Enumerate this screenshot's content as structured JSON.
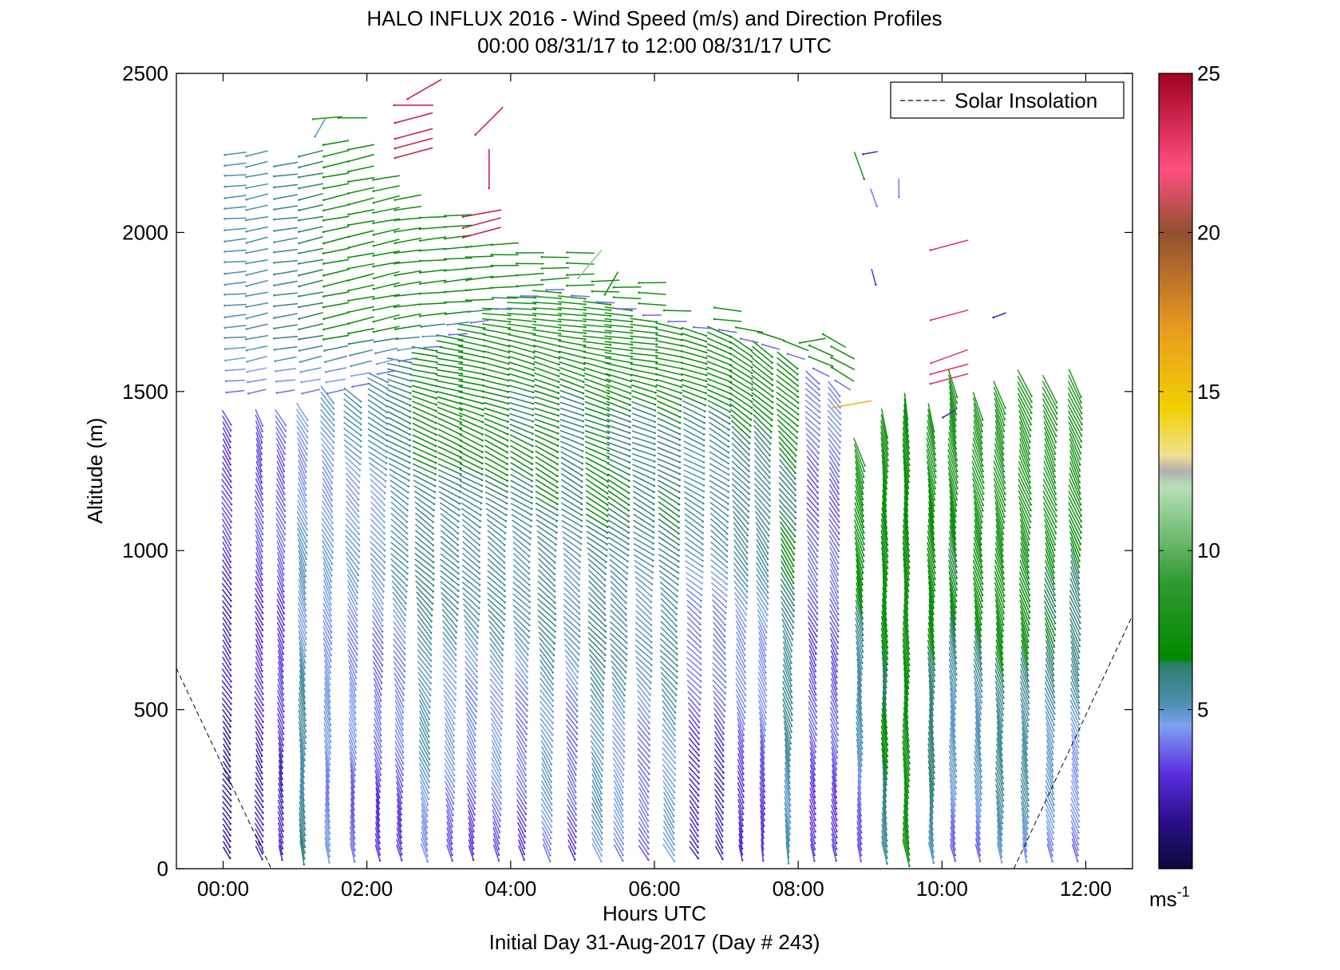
{
  "chart_data": {
    "type": "wind-barb-profile",
    "title": "HALO INFLUX 2016 - Wind Speed (m/s) and Direction Profiles",
    "subtitle": "00:00 08/31/17 to 12:00 08/31/17  UTC",
    "xlabel": "Hours UTC",
    "xlabel2": "Initial Day 31-Aug-2017 (Day # 243)",
    "ylabel": "Altitude (m)",
    "xlim_hours": [
      -0.65,
      12.65
    ],
    "ylim": [
      0,
      2500
    ],
    "x_ticks": [
      {
        "hour": 0,
        "label": "00:00"
      },
      {
        "hour": 2,
        "label": "02:00"
      },
      {
        "hour": 4,
        "label": "04:00"
      },
      {
        "hour": 6,
        "label": "06:00"
      },
      {
        "hour": 8,
        "label": "08:00"
      },
      {
        "hour": 10,
        "label": "10:00"
      },
      {
        "hour": 12,
        "label": "12:00"
      }
    ],
    "y_ticks": [
      {
        "value": 0,
        "label": "0"
      },
      {
        "value": 500,
        "label": "500"
      },
      {
        "value": 1000,
        "label": "1000"
      },
      {
        "value": 1500,
        "label": "1500"
      },
      {
        "value": 2000,
        "label": "2000"
      },
      {
        "value": 2500,
        "label": "2500"
      }
    ],
    "legend": {
      "label": "Solar Insolation",
      "placement": "top-right",
      "style": "dashed"
    },
    "solar_insolation": [
      {
        "segment": [
          [
            -0.65,
            630
          ],
          [
            0.67,
            0
          ]
        ]
      },
      {
        "segment": [
          [
            11.0,
            0
          ],
          [
            12.7,
            820
          ]
        ]
      }
    ],
    "colorbar": {
      "min": 0,
      "max": 25,
      "ticks": [
        {
          "value": 5,
          "label": "5"
        },
        {
          "value": 10,
          "label": "10"
        },
        {
          "value": 15,
          "label": "15"
        },
        {
          "value": 20,
          "label": "20"
        },
        {
          "value": 25,
          "label": "25"
        }
      ],
      "unit_label": "ms",
      "unit_exp": "-1",
      "stops": [
        {
          "v": 0,
          "color": "#0a0a3a"
        },
        {
          "v": 1.5,
          "color": "#2a0f8a"
        },
        {
          "v": 3,
          "color": "#5a2fe0"
        },
        {
          "v": 4.5,
          "color": "#7fa0f0"
        },
        {
          "v": 5.2,
          "color": "#4a90b0"
        },
        {
          "v": 6.4,
          "color": "#2e7f6e"
        },
        {
          "v": 6.6,
          "color": "#008a00"
        },
        {
          "v": 9,
          "color": "#2f9a2f"
        },
        {
          "v": 12,
          "color": "#b8e0b8"
        },
        {
          "v": 12.5,
          "color": "#b0b0b0"
        },
        {
          "v": 13,
          "color": "#f0e090"
        },
        {
          "v": 14.5,
          "color": "#f0d000"
        },
        {
          "v": 17,
          "color": "#e89a20"
        },
        {
          "v": 20,
          "color": "#905030"
        },
        {
          "v": 22,
          "color": "#ff5080"
        },
        {
          "v": 25,
          "color": "#a00020"
        }
      ]
    },
    "profiles": [
      {
        "hour": 0.05,
        "top": 1430,
        "bottom": 50,
        "speed_low": 1.6,
        "speed_high": 3.5,
        "dir_low": 145,
        "dir_high": 150
      },
      {
        "hour": 0.5,
        "top": 1430,
        "bottom": 50,
        "speed_low": 2.2,
        "speed_high": 3.7,
        "dir_low": 150,
        "dir_high": 160
      },
      {
        "hour": 0.8,
        "top": 1420,
        "bottom": 50,
        "speed_low": 2.2,
        "speed_high": 4.0,
        "dir_low": 165,
        "dir_high": 150
      },
      {
        "hour": 1.1,
        "top": 1450,
        "bottom": 50,
        "speed_low": 5.8,
        "speed_high": 4.3,
        "dir_low": 170,
        "dir_high": 150
      },
      {
        "hour": 1.45,
        "top": 1500,
        "bottom": 50,
        "speed_low": 4.4,
        "speed_high": 4.6,
        "dir_low": 170,
        "dir_high": 140
      },
      {
        "hour": 1.8,
        "top": 1500,
        "bottom": 50,
        "speed_low": 3.8,
        "speed_high": 5.0,
        "dir_low": 170,
        "dir_high": 125
      },
      {
        "hour": 2.15,
        "top": 1560,
        "bottom": 50,
        "speed_low": 3.0,
        "speed_high": 5.5,
        "dir_low": 168,
        "dir_high": 115
      },
      {
        "hour": 2.45,
        "top": 1600,
        "bottom": 50,
        "speed_low": 3.0,
        "speed_high": 6.5,
        "dir_low": 165,
        "dir_high": 105
      },
      {
        "hour": 2.8,
        "top": 1640,
        "bottom": 50,
        "speed_low": 4.4,
        "speed_high": 7.0,
        "dir_low": 162,
        "dir_high": 100
      },
      {
        "hour": 3.15,
        "top": 1680,
        "bottom": 50,
        "speed_low": 3.6,
        "speed_high": 7.2,
        "dir_low": 160,
        "dir_high": 97
      },
      {
        "hour": 3.45,
        "top": 1720,
        "bottom": 50,
        "speed_low": 3.0,
        "speed_high": 7.5,
        "dir_low": 160,
        "dir_high": 95
      },
      {
        "hour": 3.8,
        "top": 1760,
        "bottom": 50,
        "speed_low": 3.6,
        "speed_high": 7.5,
        "dir_low": 158,
        "dir_high": 95
      },
      {
        "hour": 4.15,
        "top": 1800,
        "bottom": 50,
        "speed_low": 3.0,
        "speed_high": 7.6,
        "dir_low": 155,
        "dir_high": 95
      },
      {
        "hour": 4.5,
        "top": 1820,
        "bottom": 50,
        "speed_low": 4.2,
        "speed_high": 7.6,
        "dir_low": 155,
        "dir_high": 95
      },
      {
        "hour": 4.85,
        "top": 1800,
        "bottom": 50,
        "speed_low": 3.0,
        "speed_high": 7.5,
        "dir_low": 155,
        "dir_high": 95
      },
      {
        "hour": 5.2,
        "top": 1780,
        "bottom": 50,
        "speed_low": 4.6,
        "speed_high": 7.5,
        "dir_low": 155,
        "dir_high": 95
      },
      {
        "hour": 5.5,
        "top": 1760,
        "bottom": 50,
        "speed_low": 4.0,
        "speed_high": 7.4,
        "dir_low": 155,
        "dir_high": 95
      },
      {
        "hour": 5.85,
        "top": 1740,
        "bottom": 50,
        "speed_low": 3.4,
        "speed_high": 7.2,
        "dir_low": 150,
        "dir_high": 95
      },
      {
        "hour": 6.2,
        "top": 1720,
        "bottom": 50,
        "speed_low": 4.4,
        "speed_high": 7.2,
        "dir_low": 150,
        "dir_high": 100
      },
      {
        "hour": 6.55,
        "top": 1700,
        "bottom": 50,
        "speed_low": 2.0,
        "speed_high": 7.0,
        "dir_low": 145,
        "dir_high": 105
      },
      {
        "hour": 6.9,
        "top": 1690,
        "bottom": 50,
        "speed_low": 2.0,
        "speed_high": 7.0,
        "dir_low": 150,
        "dir_high": 110
      },
      {
        "hour": 7.2,
        "top": 1660,
        "bottom": 50,
        "speed_low": 2.4,
        "speed_high": 7.4,
        "dir_low": 165,
        "dir_high": 120
      },
      {
        "hour": 7.5,
        "top": 1640,
        "bottom": 50,
        "speed_low": 2.8,
        "speed_high": 7.0,
        "dir_low": 170,
        "dir_high": 125
      },
      {
        "hour": 7.85,
        "top": 1610,
        "bottom": 50,
        "speed_low": 5.0,
        "speed_high": 7.2,
        "dir_low": 170,
        "dir_high": 125
      },
      {
        "hour": 8.2,
        "top": 1560,
        "bottom": 50,
        "speed_low": 3.2,
        "speed_high": 3.8,
        "dir_low": 165,
        "dir_high": 130
      },
      {
        "hour": 8.5,
        "top": 1520,
        "bottom": 50,
        "speed_low": 3.2,
        "speed_high": 4.0,
        "dir_low": 165,
        "dir_high": 140
      },
      {
        "hour": 8.85,
        "top": 1310,
        "bottom": 50,
        "speed_low": 3.6,
        "speed_high": 8.0,
        "dir_low": 170,
        "dir_high": 160
      },
      {
        "hour": 9.2,
        "top": 1400,
        "bottom": 50,
        "speed_low": 5.8,
        "speed_high": 8.0,
        "dir_low": 170,
        "dir_high": 170
      },
      {
        "hour": 9.5,
        "top": 1470,
        "bottom": 50,
        "speed_low": 7.8,
        "speed_high": 7.0,
        "dir_low": 170,
        "dir_high": 170
      },
      {
        "hour": 9.85,
        "top": 1420,
        "bottom": 50,
        "speed_low": 5.4,
        "speed_high": 8.0,
        "dir_low": 170,
        "dir_high": 165
      },
      {
        "hour": 10.15,
        "top": 1530,
        "bottom": 50,
        "speed_low": 3.8,
        "speed_high": 8.5,
        "dir_low": 165,
        "dir_high": 165
      },
      {
        "hour": 10.5,
        "top": 1460,
        "bottom": 50,
        "speed_low": 4.0,
        "speed_high": 8.5,
        "dir_low": 165,
        "dir_high": 160
      },
      {
        "hour": 10.8,
        "top": 1500,
        "bottom": 50,
        "speed_low": 5.0,
        "speed_high": 8.5,
        "dir_low": 165,
        "dir_high": 160
      },
      {
        "hour": 11.15,
        "top": 1540,
        "bottom": 50,
        "speed_low": 4.6,
        "speed_high": 8.5,
        "dir_low": 165,
        "dir_high": 155
      },
      {
        "hour": 11.5,
        "top": 1520,
        "bottom": 50,
        "speed_low": 4.0,
        "speed_high": 8.8,
        "dir_low": 160,
        "dir_high": 155
      },
      {
        "hour": 11.85,
        "top": 1540,
        "bottom": 50,
        "speed_low": 3.6,
        "speed_high": 8.6,
        "dir_low": 160,
        "dir_high": 155
      }
    ],
    "upper_winds": [
      {
        "hour": 0.05,
        "alt_min": 1500,
        "alt_max": 2260,
        "speed": 5.2,
        "dir": 265
      },
      {
        "hour": 0.35,
        "alt_min": 1500,
        "alt_max": 2260,
        "speed": 5.4,
        "dir": 258
      },
      {
        "hour": 0.75,
        "alt_min": 1500,
        "alt_max": 2230,
        "speed": 6.0,
        "dir": 262
      },
      {
        "hour": 1.1,
        "alt_min": 1500,
        "alt_max": 2250,
        "speed": 6.4,
        "dir": 258
      },
      {
        "hour": 1.45,
        "alt_min": 1500,
        "alt_max": 2300,
        "speed": 6.8,
        "dir": 258
      },
      {
        "hour": 1.8,
        "alt_min": 1520,
        "alt_max": 2280,
        "speed": 7.0,
        "dir": 258
      },
      {
        "hour": 2.15,
        "alt_min": 1560,
        "alt_max": 2200,
        "speed": 7.2,
        "dir": 258
      },
      {
        "hour": 2.45,
        "alt_min": 1600,
        "alt_max": 2120,
        "speed": 7.2,
        "dir": 262
      },
      {
        "hour": 2.8,
        "alt_min": 1640,
        "alt_max": 2080,
        "speed": 7.2,
        "dir": 265
      },
      {
        "hour": 3.15,
        "alt_min": 1680,
        "alt_max": 2060,
        "speed": 7.4,
        "dir": 265
      },
      {
        "hour": 3.45,
        "alt_min": 1720,
        "alt_max": 1980,
        "speed": 7.4,
        "dir": 265
      },
      {
        "hour": 3.8,
        "alt_min": 1760,
        "alt_max": 1980,
        "speed": 7.4,
        "dir": 268
      },
      {
        "hour": 4.15,
        "alt_min": 1800,
        "alt_max": 1960,
        "speed": 7.4,
        "dir": 268
      },
      {
        "hour": 4.5,
        "alt_min": 1820,
        "alt_max": 1950,
        "speed": 7.4,
        "dir": 268
      },
      {
        "hour": 4.85,
        "alt_min": 1800,
        "alt_max": 1940,
        "speed": 7.4,
        "dir": 270
      },
      {
        "hour": 5.2,
        "alt_min": 1780,
        "alt_max": 1860,
        "speed": 7.4,
        "dir": 270
      },
      {
        "hour": 5.5,
        "alt_min": 1760,
        "alt_max": 1860,
        "speed": 7.4,
        "dir": 270
      },
      {
        "hour": 5.85,
        "alt_min": 1740,
        "alt_max": 1860,
        "speed": 7.4,
        "dir": 272
      },
      {
        "hour": 6.2,
        "alt_min": 1720,
        "alt_max": 1780,
        "speed": 7.4,
        "dir": 272
      },
      {
        "hour": 6.55,
        "alt_min": 1700,
        "alt_max": 1720,
        "speed": 7.4,
        "dir": 275
      },
      {
        "hour": 6.9,
        "alt_min": 1690,
        "alt_max": 1760,
        "speed": 7.4,
        "dir": 278
      },
      {
        "hour": 7.2,
        "alt_min": 1660,
        "alt_max": 1700,
        "speed": 7.4,
        "dir": 280
      },
      {
        "hour": 7.5,
        "alt_min": 1640,
        "alt_max": 1680,
        "speed": 7.2,
        "dir": 285
      },
      {
        "hour": 7.85,
        "alt_min": 1610,
        "alt_max": 1650,
        "speed": 7.0,
        "dir": 290
      },
      {
        "hour": 8.2,
        "alt_min": 1560,
        "alt_max": 1660,
        "speed": 7.0,
        "dir": 295
      },
      {
        "hour": 8.5,
        "alt_min": 1520,
        "alt_max": 1650,
        "speed": 7.0,
        "dir": 300
      }
    ],
    "scattered_barbs": [
      {
        "hour": 2.8,
        "alt": 2450,
        "speed": 24,
        "dir": 240
      },
      {
        "hour": 2.65,
        "alt": 2400,
        "speed": 24,
        "dir": 270
      },
      {
        "hour": 2.65,
        "alt": 2360,
        "speed": 24,
        "dir": 255
      },
      {
        "hour": 2.65,
        "alt": 2310,
        "speed": 24,
        "dir": 255
      },
      {
        "hour": 2.65,
        "alt": 2280,
        "speed": 24,
        "dir": 255
      },
      {
        "hour": 2.65,
        "alt": 2250,
        "speed": 24,
        "dir": 255
      },
      {
        "hour": 3.7,
        "alt": 2350,
        "speed": 24,
        "dir": 225
      },
      {
        "hour": 3.7,
        "alt": 2200,
        "speed": 24,
        "dir": 180
      },
      {
        "hour": 3.6,
        "alt": 2060,
        "speed": 24,
        "dir": 260
      },
      {
        "hour": 3.6,
        "alt": 2030,
        "speed": 24,
        "dir": 255
      },
      {
        "hour": 3.6,
        "alt": 2000,
        "speed": 24,
        "dir": 255
      },
      {
        "hour": 1.45,
        "alt": 2360,
        "speed": 8,
        "dir": 265
      },
      {
        "hour": 1.8,
        "alt": 2360,
        "speed": 8,
        "dir": 270
      },
      {
        "hour": 1.35,
        "alt": 2330,
        "speed": 5,
        "dir": 210
      },
      {
        "hour": 8.75,
        "alt": 1460,
        "speed": 16,
        "dir": 260
      },
      {
        "hour": 9.0,
        "alt": 2250,
        "speed": 2.5,
        "dir": 260
      },
      {
        "hour": 8.85,
        "alt": 2210,
        "speed": 8,
        "dir": 160
      },
      {
        "hour": 9.05,
        "alt": 2110,
        "speed": 4,
        "dir": 160
      },
      {
        "hour": 9.4,
        "alt": 2140,
        "speed": 4,
        "dir": 180
      },
      {
        "hour": 9.05,
        "alt": 1860,
        "speed": 3,
        "dir": 165
      },
      {
        "hour": 10.1,
        "alt": 1960,
        "speed": 23,
        "dir": 255
      },
      {
        "hour": 10.1,
        "alt": 1740,
        "speed": 23,
        "dir": 255
      },
      {
        "hour": 10.1,
        "alt": 1610,
        "speed": 23,
        "dir": 250
      },
      {
        "hour": 10.1,
        "alt": 1570,
        "speed": 23,
        "dir": 255
      },
      {
        "hour": 10.1,
        "alt": 1540,
        "speed": 23,
        "dir": 255
      },
      {
        "hour": 10.1,
        "alt": 1430,
        "speed": 2.5,
        "dir": 240
      },
      {
        "hour": 10.8,
        "alt": 1740,
        "speed": 2,
        "dir": 250
      },
      {
        "hour": 8.2,
        "alt": 1660,
        "speed": 7,
        "dir": 260
      },
      {
        "hour": 8.5,
        "alt": 1660,
        "speed": 7,
        "dir": 300
      },
      {
        "hour": 5.1,
        "alt": 1900,
        "speed": 11,
        "dir": 220
      },
      {
        "hour": 5.4,
        "alt": 1840,
        "speed": 7,
        "dir": 210
      }
    ]
  }
}
